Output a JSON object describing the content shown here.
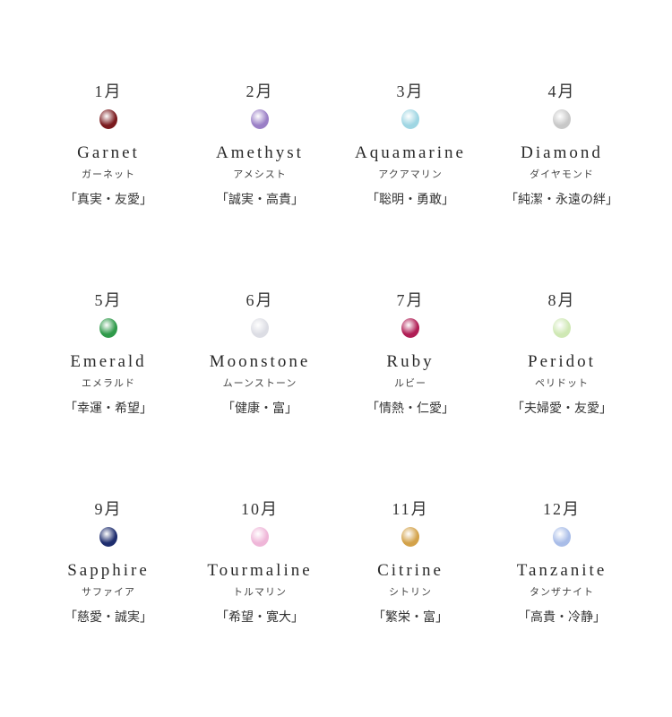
{
  "stones": [
    {
      "month": "1月",
      "name": "Garnet",
      "kana": "ガーネット",
      "meaning": "「真実・友愛」",
      "color": "#7a1a1e"
    },
    {
      "month": "2月",
      "name": "Amethyst",
      "kana": "アメシスト",
      "meaning": "「誠実・高貴」",
      "color": "#9a7fc6"
    },
    {
      "month": "3月",
      "name": "Aquamarine",
      "kana": "アクアマリン",
      "meaning": "「聡明・勇敢」",
      "color": "#9fd6e3"
    },
    {
      "month": "4月",
      "name": "Diamond",
      "kana": "ダイヤモンド",
      "meaning": "「純潔・永遠の絆」",
      "color": "#c8c8c8"
    },
    {
      "month": "5月",
      "name": "Emerald",
      "kana": "エメラルド",
      "meaning": "「幸運・希望」",
      "color": "#2f9a4a"
    },
    {
      "month": "6月",
      "name": "Moonstone",
      "kana": "ムーンストーン",
      "meaning": "「健康・富」",
      "color": "#dcdde4"
    },
    {
      "month": "7月",
      "name": "Ruby",
      "kana": "ルビー",
      "meaning": "「情熱・仁愛」",
      "color": "#b01e55"
    },
    {
      "month": "8月",
      "name": "Peridot",
      "kana": "ペリドット",
      "meaning": "「夫婦愛・友愛」",
      "color": "#cfe8b4"
    },
    {
      "month": "9月",
      "name": "Sapphire",
      "kana": "サファイア",
      "meaning": "「慈愛・誠実」",
      "color": "#1e2d6e"
    },
    {
      "month": "10月",
      "name": "Tourmaline",
      "kana": "トルマリン",
      "meaning": "「希望・寛大」",
      "color": "#efb6d8"
    },
    {
      "month": "11月",
      "name": "Citrine",
      "kana": "シトリン",
      "meaning": "「繁栄・富」",
      "color": "#d3a24a"
    },
    {
      "month": "12月",
      "name": "Tanzanite",
      "kana": "タンザナイト",
      "meaning": "「高貴・冷静」",
      "color": "#a9bde8"
    }
  ]
}
